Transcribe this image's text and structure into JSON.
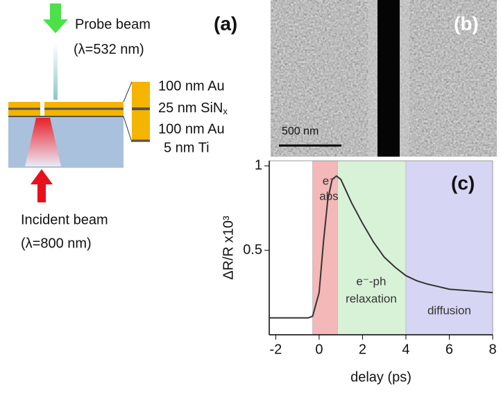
{
  "panel_a": {
    "label": "(a)",
    "probe": {
      "name": "Probe beam",
      "wavelength": "(λ=532 nm)"
    },
    "incident": {
      "name": "Incident beam",
      "wavelength": "(λ=800 nm)"
    },
    "layers": [
      {
        "text": "100 nm Au"
      },
      {
        "text": "25 nm SiN",
        "sub": "x"
      },
      {
        "text": "100 nm Au"
      },
      {
        "text": "5 nm Ti"
      }
    ]
  },
  "panel_b": {
    "label": "(b)",
    "scale_bar": "500 nm"
  },
  "chart_data": {
    "type": "line",
    "label": "(c)",
    "xlabel": "delay (ps)",
    "ylabel": "ΔR/R x10³",
    "x": [
      -2.3,
      -0.5,
      -0.3,
      0,
      0.2,
      0.4,
      0.6,
      0.8,
      1.0,
      1.5,
      2,
      2.5,
      3,
      3.5,
      4,
      4.5,
      5,
      6,
      7,
      8
    ],
    "values": [
      0.1,
      0.1,
      0.11,
      0.25,
      0.55,
      0.8,
      0.92,
      0.94,
      0.92,
      0.78,
      0.66,
      0.55,
      0.46,
      0.4,
      0.35,
      0.32,
      0.3,
      0.27,
      0.26,
      0.25
    ],
    "color": "#333333",
    "regions": [
      {
        "lines": [
          "e⁻",
          "abs"
        ],
        "start": -0.3,
        "end": 0.85,
        "color": "#f4b8b8"
      },
      {
        "lines": [
          "e⁻-ph",
          "relaxation"
        ],
        "start": 0.85,
        "end": 4.0,
        "color": "#d8f2d8"
      },
      {
        "lines": [
          "diffusion"
        ],
        "start": 4.0,
        "end": 8,
        "color": "#d6d6f4"
      }
    ],
    "xlim": [
      -2.3,
      8
    ],
    "ylim": [
      0,
      1.03
    ],
    "xticks": [
      -2,
      0,
      2,
      4,
      6,
      8
    ],
    "yticks": [
      0.5,
      1
    ]
  }
}
